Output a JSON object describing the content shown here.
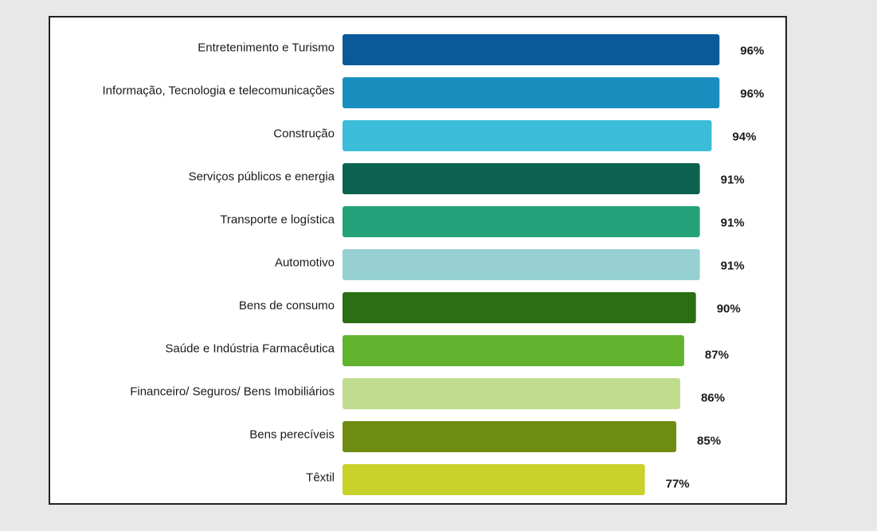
{
  "chart_data": {
    "type": "bar",
    "orientation": "horizontal",
    "categories": [
      "Entretenimento e Turismo",
      "Informação, Tecnologia e telecomunicações",
      "Construção",
      "Serviços públicos e energia",
      "Transporte e logística",
      "Automotivo",
      "Bens de consumo",
      "Saúde e Indústria Farmacêutica",
      "Financeiro/ Seguros/ Bens Imobiliários",
      "Bens perecíveis",
      "Têxtil"
    ],
    "values": [
      96,
      96,
      94,
      91,
      91,
      91,
      90,
      87,
      86,
      85,
      77
    ],
    "value_labels": [
      "96%",
      "96%",
      "94%",
      "91%",
      "91%",
      "91%",
      "90%",
      "87%",
      "86%",
      "85%",
      "77%"
    ],
    "colors": [
      "#0a5a9a",
      "#1a8fbf",
      "#3bbcd8",
      "#0b6350",
      "#23a27a",
      "#96d0d2",
      "#2c6e14",
      "#62b32e",
      "#c0dc8e",
      "#6f8c12",
      "#c8d22a"
    ],
    "unit": "%",
    "xlim": [
      0,
      100
    ],
    "grid": false,
    "legend": "none",
    "title": "",
    "xlabel": "",
    "ylabel": ""
  }
}
